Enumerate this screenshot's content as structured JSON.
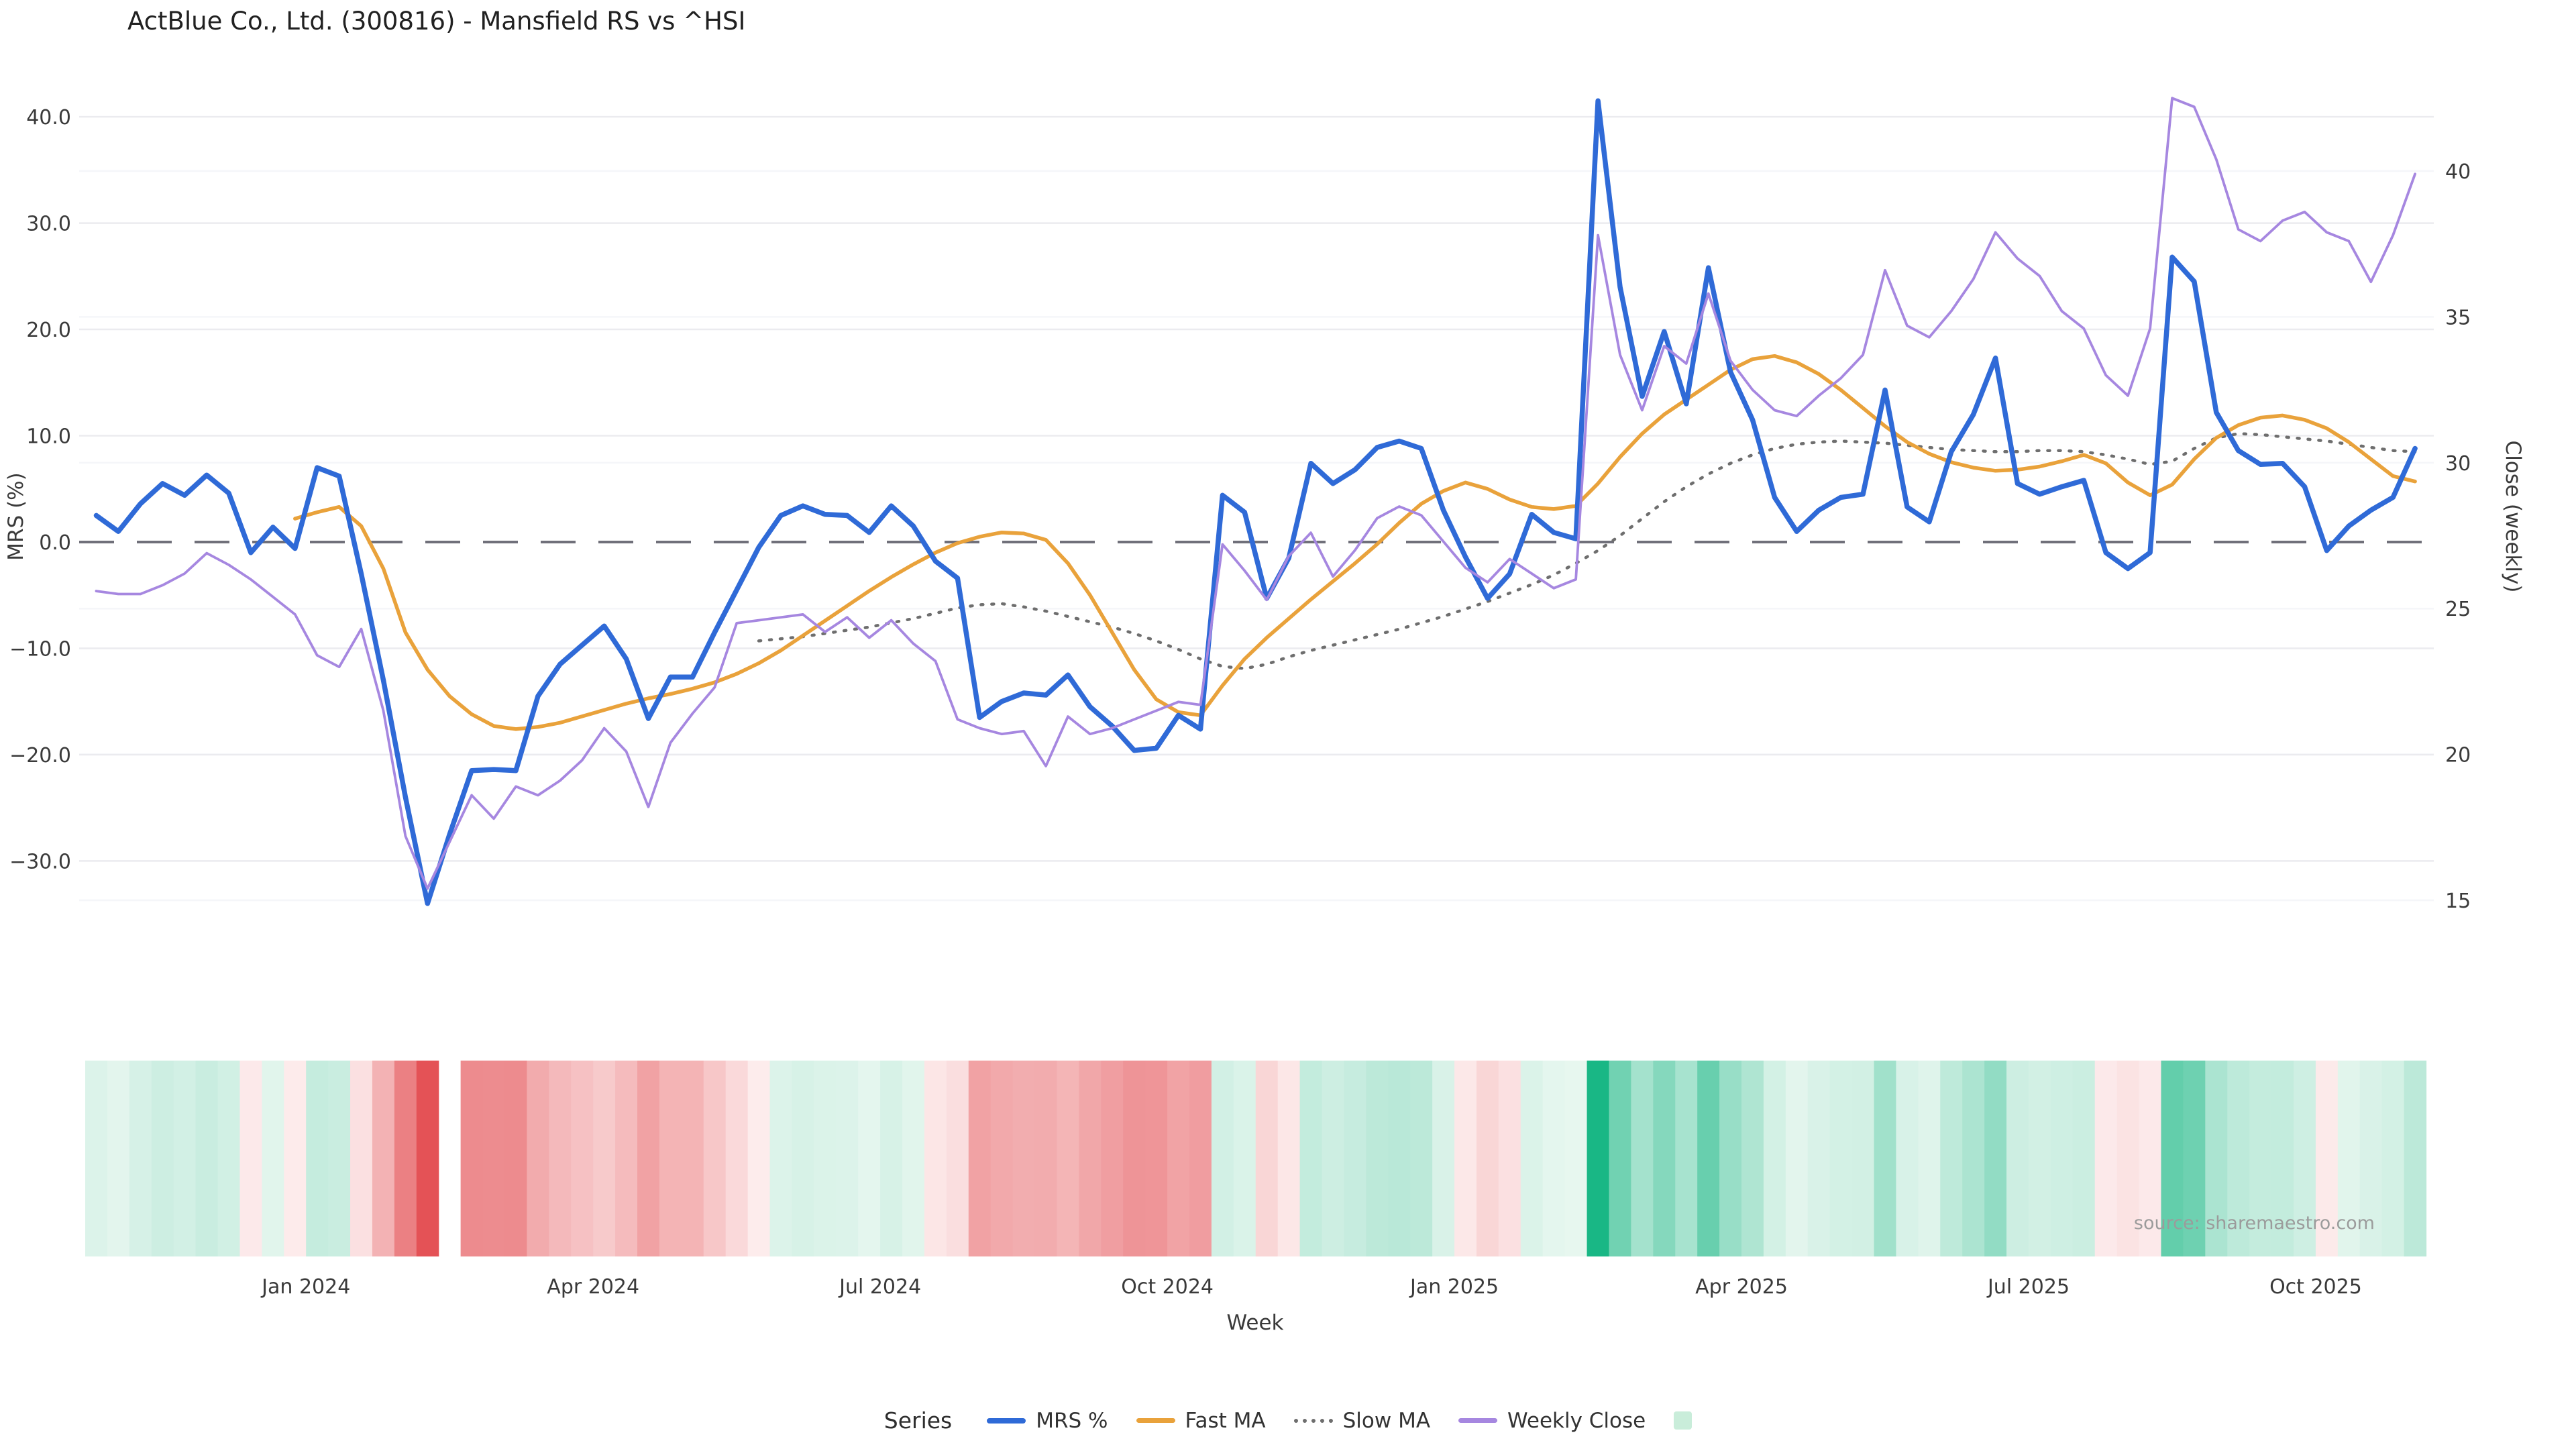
{
  "title": "ActBlue Co., Ltd. (300816) - Mansfield RS vs ^HSI",
  "source_note": "source: sharemaestro.com",
  "legend": {
    "title": "Series",
    "items": [
      {
        "label": "MRS %",
        "style": "line",
        "color": "#2f6ad7"
      },
      {
        "label": "Fast MA",
        "style": "line",
        "color": "#e9a23b"
      },
      {
        "label": "Slow MA",
        "style": "dotted",
        "color": "#6e6e6e"
      },
      {
        "label": "Weekly Close",
        "style": "line",
        "color": "#a687e0"
      },
      {
        "label": "",
        "style": "swatch",
        "color": "#c9edda"
      }
    ]
  },
  "chart_data": {
    "type": "line",
    "title": "ActBlue Co., Ltd. (300816) - Mansfield RS vs ^HSI",
    "xlabel": "Week",
    "ylabel_left": "MRS (%)",
    "ylabel_right": "Close (weekly)",
    "grid": true,
    "legend_position": "bottom",
    "ylim_left": [
      -37,
      44
    ],
    "ylim_right": [
      14,
      42.8
    ],
    "y_left_ticks": [
      {
        "v": 40,
        "label": "40.0"
      },
      {
        "v": 30,
        "label": "30.0"
      },
      {
        "v": 20,
        "label": "20.0"
      },
      {
        "v": 10,
        "label": "10.0"
      },
      {
        "v": 0,
        "label": "0.0"
      },
      {
        "v": -10,
        "label": "−10.0"
      },
      {
        "v": -20,
        "label": "−20.0"
      },
      {
        "v": -30,
        "label": "−30.0"
      }
    ],
    "y_right_ticks": [
      {
        "v": 40,
        "label": "40"
      },
      {
        "v": 35,
        "label": "35"
      },
      {
        "v": 30,
        "label": "30"
      },
      {
        "v": 25,
        "label": "25"
      },
      {
        "v": 20,
        "label": "20"
      },
      {
        "v": 15,
        "label": "15"
      }
    ],
    "x_ticks": [
      {
        "label": "Jan 2024",
        "week": 9.5
      },
      {
        "label": "Apr 2024",
        "week": 22.5
      },
      {
        "label": "Jul 2024",
        "week": 35.5
      },
      {
        "label": "Oct 2024",
        "week": 48.5
      },
      {
        "label": "Jan 2025",
        "week": 61.5
      },
      {
        "label": "Apr 2025",
        "week": 74.5
      },
      {
        "label": "Jul 2025",
        "week": 87.5
      },
      {
        "label": "Oct 2025",
        "week": 100.5
      }
    ],
    "zero_line": {
      "value": 0,
      "axis": "left",
      "color": "#70707a",
      "dashed": true
    },
    "series": [
      {
        "name": "MRS %",
        "axis": "left",
        "color": "#2f6ad7",
        "width": 7.5,
        "style": "solid",
        "values": [
          2.5,
          1.0,
          3.6,
          5.5,
          4.4,
          6.3,
          4.6,
          -1.0,
          1.4,
          -0.6,
          7.0,
          6.2,
          -3.0,
          -13.0,
          -24.0,
          -34.0,
          -27.5,
          -21.5,
          -21.4,
          -21.5,
          -14.5,
          -11.5,
          -9.7,
          -7.9,
          -11.0,
          -16.6,
          -12.7,
          -12.7,
          -8.5,
          -4.5,
          -0.5,
          2.5,
          3.4,
          2.6,
          2.5,
          0.9,
          3.4,
          1.5,
          -1.8,
          -3.4,
          -16.5,
          -15.0,
          -14.2,
          -14.4,
          -12.5,
          -15.5,
          -17.3,
          -19.6,
          -19.4,
          -16.3,
          -17.6,
          4.4,
          2.8,
          -5.3,
          -1.5,
          7.4,
          5.5,
          6.8,
          8.9,
          9.5,
          8.8,
          3.0,
          -1.4,
          -5.3,
          -3.0,
          2.6,
          0.9,
          0.3,
          41.5,
          24.0,
          13.7,
          19.8,
          13.0,
          25.8,
          16.0,
          11.5,
          4.2,
          1.0,
          3.0,
          4.2,
          4.5,
          14.3,
          3.3,
          1.9,
          8.5,
          12.0,
          17.3,
          5.5,
          4.5,
          5.2,
          5.8,
          -1.0,
          -2.5,
          -1.0,
          26.8,
          24.5,
          12.2,
          8.6,
          7.3,
          7.4,
          5.2,
          -0.8,
          1.5,
          3.0,
          4.2,
          8.8
        ]
      },
      {
        "name": "Fast MA",
        "axis": "left",
        "color": "#e9a23b",
        "width": 5.5,
        "style": "solid",
        "values": [
          null,
          null,
          null,
          null,
          null,
          null,
          null,
          null,
          null,
          2.2,
          2.8,
          3.3,
          1.5,
          -2.5,
          -8.5,
          -12.0,
          -14.5,
          -16.2,
          -17.3,
          -17.6,
          -17.4,
          -17.0,
          -16.4,
          -15.8,
          -15.2,
          -14.7,
          -14.3,
          -13.8,
          -13.2,
          -12.4,
          -11.4,
          -10.2,
          -8.8,
          -7.4,
          -6.0,
          -4.6,
          -3.3,
          -2.1,
          -1.0,
          -0.1,
          0.5,
          0.9,
          0.8,
          0.2,
          -2.0,
          -5.0,
          -8.5,
          -12.0,
          -14.8,
          -16.0,
          -16.3,
          -13.5,
          -11.0,
          -9.0,
          -7.2,
          -5.4,
          -3.7,
          -2.0,
          -0.2,
          1.8,
          3.6,
          4.8,
          5.6,
          5.0,
          4.0,
          3.3,
          3.1,
          3.4,
          5.5,
          8.0,
          10.2,
          12.0,
          13.4,
          14.8,
          16.2,
          17.2,
          17.5,
          16.9,
          15.8,
          14.3,
          12.6,
          10.9,
          9.4,
          8.3,
          7.5,
          7.0,
          6.7,
          6.8,
          7.1,
          7.6,
          8.2,
          7.4,
          5.6,
          4.4,
          5.4,
          7.8,
          9.8,
          11.0,
          11.7,
          11.9,
          11.5,
          10.7,
          9.4,
          7.8,
          6.2,
          5.7
        ]
      },
      {
        "name": "Slow MA",
        "axis": "left",
        "color": "#6e6e6e",
        "width": 4.5,
        "style": "dotted",
        "values": [
          null,
          null,
          null,
          null,
          null,
          null,
          null,
          null,
          null,
          null,
          null,
          null,
          null,
          null,
          null,
          null,
          null,
          null,
          null,
          null,
          null,
          null,
          null,
          null,
          null,
          null,
          null,
          null,
          null,
          null,
          -9.3,
          -9.1,
          -8.9,
          -8.6,
          -8.3,
          -8.0,
          -7.6,
          -7.2,
          -6.7,
          -6.2,
          -5.9,
          -5.8,
          -6.1,
          -6.5,
          -7.0,
          -7.5,
          -8.0,
          -8.6,
          -9.3,
          -10.1,
          -11.0,
          -11.7,
          -11.9,
          -11.5,
          -10.8,
          -10.2,
          -9.7,
          -9.2,
          -8.7,
          -8.2,
          -7.6,
          -7.0,
          -6.3,
          -5.6,
          -4.8,
          -4.0,
          -3.1,
          -2.0,
          -0.8,
          0.6,
          2.2,
          3.8,
          5.2,
          6.4,
          7.4,
          8.2,
          8.8,
          9.2,
          9.4,
          9.5,
          9.4,
          9.3,
          9.1,
          8.9,
          8.7,
          8.6,
          8.5,
          8.5,
          8.6,
          8.6,
          8.5,
          8.2,
          7.8,
          7.3,
          7.6,
          8.8,
          9.8,
          10.2,
          10.1,
          9.9,
          9.7,
          9.5,
          9.2,
          8.9,
          8.6,
          8.5
        ]
      },
      {
        "name": "Weekly Close",
        "axis": "right",
        "color": "#a687e0",
        "width": 3.8,
        "style": "solid",
        "values": [
          25.6,
          25.5,
          25.5,
          25.8,
          26.2,
          26.9,
          26.5,
          26.0,
          25.4,
          24.8,
          23.4,
          23.0,
          24.3,
          21.5,
          17.2,
          15.4,
          17.0,
          18.6,
          17.8,
          18.9,
          18.6,
          19.1,
          19.8,
          20.9,
          20.1,
          18.2,
          20.4,
          21.4,
          22.3,
          24.5,
          24.6,
          24.7,
          24.8,
          24.2,
          24.7,
          24.0,
          24.6,
          23.8,
          23.2,
          21.2,
          20.9,
          20.7,
          20.8,
          19.6,
          21.3,
          20.7,
          20.9,
          21.2,
          21.5,
          21.8,
          21.7,
          27.2,
          26.3,
          25.3,
          26.8,
          27.6,
          26.1,
          27.0,
          28.1,
          28.5,
          28.2,
          27.3,
          26.4,
          25.9,
          26.7,
          26.2,
          25.7,
          26.0,
          37.8,
          33.7,
          31.8,
          34.0,
          33.4,
          35.8,
          33.5,
          32.5,
          31.8,
          31.6,
          32.3,
          32.9,
          33.7,
          36.6,
          34.7,
          34.3,
          35.2,
          36.3,
          37.9,
          37.0,
          36.4,
          35.2,
          34.6,
          33.0,
          32.3,
          34.6,
          42.5,
          42.2,
          40.4,
          38.0,
          37.6,
          38.3,
          38.6,
          37.9,
          37.6,
          36.2,
          37.8,
          39.9
        ]
      }
    ],
    "heatmap": {
      "source_series": "MRS %",
      "description": "weekly strip below chart colored by MRS % value",
      "positive_color_max": "#17b684",
      "positive_color_min": "#e8f7f0",
      "negative_color_max": "#e34d52",
      "negative_color_min": "#fdeeee",
      "positive_scale_limit": 42,
      "negative_scale_limit": 35,
      "gap_weeks": [
        16
      ]
    }
  }
}
